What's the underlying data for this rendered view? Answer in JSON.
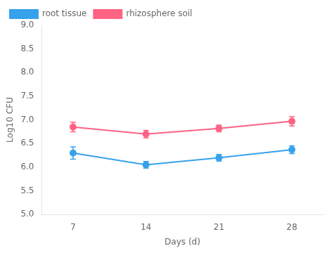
{
  "chart_data": {
    "type": "line",
    "xlabel": "Days (d)",
    "ylabel": "Log10 CFU",
    "x": [
      7,
      14,
      21,
      28
    ],
    "series": [
      {
        "name": "root tissue",
        "values": [
          6.3,
          6.05,
          6.2,
          6.37
        ],
        "errors": [
          0.13,
          0.07,
          0.07,
          0.08
        ]
      },
      {
        "name": "rhizosphere soil",
        "values": [
          6.85,
          6.7,
          6.82,
          6.97
        ],
        "errors": [
          0.1,
          0.08,
          0.07,
          0.1
        ]
      }
    ],
    "xlim": [
      4,
      31
    ],
    "xticks": [
      7,
      14,
      21,
      28
    ],
    "ylim": [
      5.0,
      9.0
    ],
    "yticks": [
      {
        "value": 5.0,
        "label": "5.0"
      },
      5.5,
      {
        "value": 6.0,
        "label": "6.0"
      },
      6.5,
      {
        "value": 7.0,
        "label": "7.0"
      },
      7.5,
      {
        "value": 8.0,
        "label": "8.0"
      },
      8.5,
      {
        "value": 9.0,
        "label": "9.0"
      }
    ],
    "marker": "circle",
    "grid": false,
    "legend": "upper left"
  }
}
